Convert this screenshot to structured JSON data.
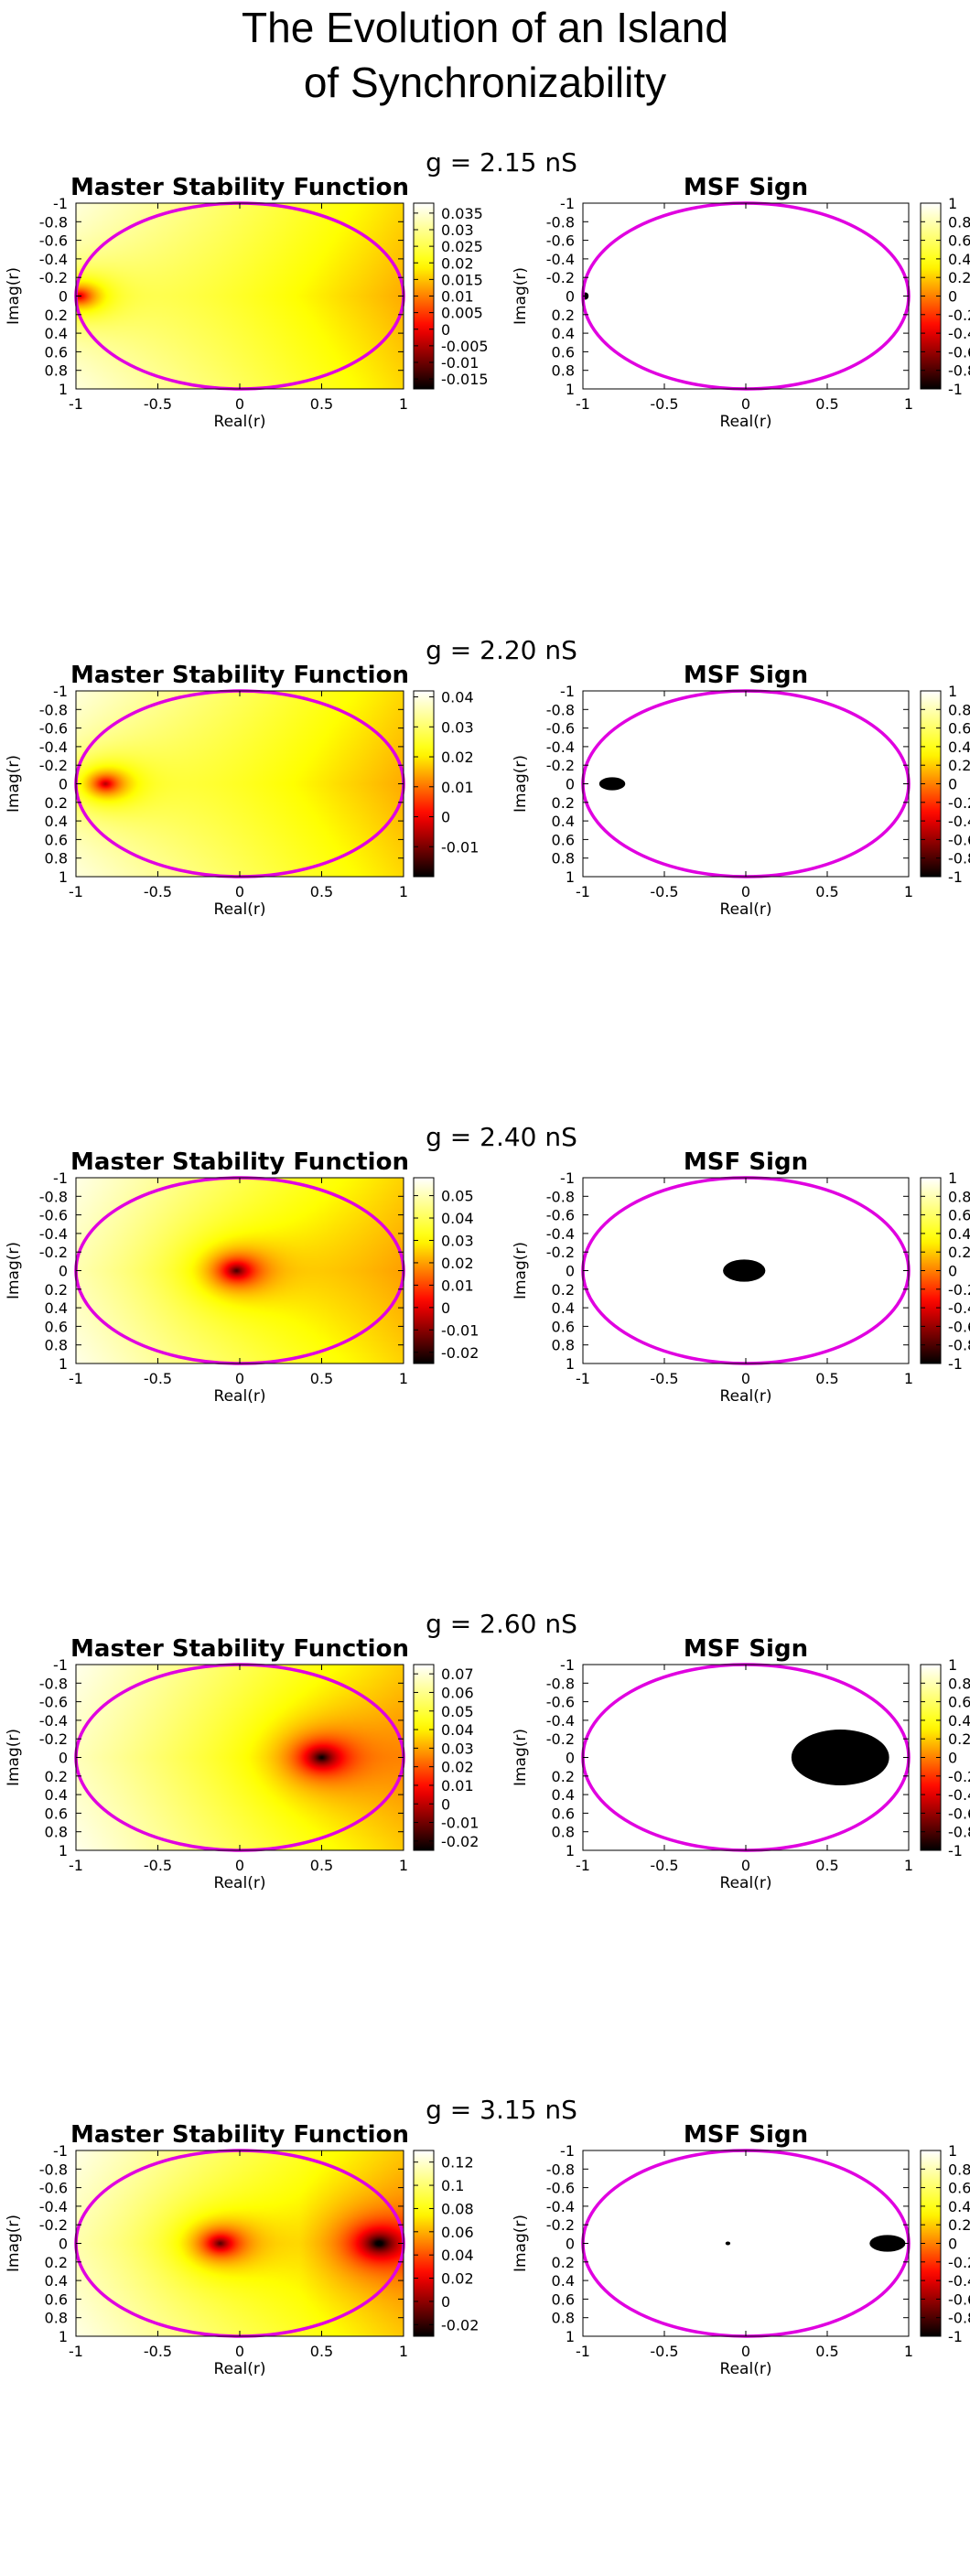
{
  "figure": {
    "title_line1": "The Evolution of an Island",
    "title_line2": "of Synchronizability"
  },
  "colors": {
    "circle": "#e000e0",
    "frame": "#000000"
  },
  "chart_data": [
    {
      "type": "heatmap",
      "g_label": "g = 2.15 nS",
      "panels": [
        {
          "title": "Master Stability Function",
          "xlabel": "Real(r)",
          "ylabel": "Imag(r)",
          "xlim": [
            -1,
            1
          ],
          "ylim": [
            -1,
            1
          ],
          "y_axis_inverted": true,
          "xticks": [
            "-1",
            "-0.5",
            "0",
            "0.5",
            "1"
          ],
          "yticks": [
            "-1",
            "-0.8",
            "-0.6",
            "-0.4",
            "-0.2",
            "0",
            "0.2",
            "0.4",
            "0.6",
            "0.8",
            "1"
          ],
          "colorbar_range": [
            -0.018,
            0.038
          ],
          "colorbar_ticks": [
            "0.035",
            "0.03",
            "0.025",
            "0.02",
            "0.015",
            "0.01",
            "0.005",
            "0",
            "-0.005",
            "-0.01",
            "-0.015"
          ],
          "colorbar_tick_values": [
            0.035,
            0.03,
            0.025,
            0.02,
            0.015,
            0.01,
            0.005,
            0,
            -0.005,
            -0.01,
            -0.015
          ],
          "minima": [
            {
              "re": -0.98,
              "im": 0.0
            }
          ],
          "unit_circle": true
        },
        {
          "title": "MSF Sign",
          "xlabel": "Real(r)",
          "ylabel": "Imag(r)",
          "xlim": [
            -1,
            1
          ],
          "ylim": [
            -1,
            1
          ],
          "y_axis_inverted": true,
          "xticks": [
            "-1",
            "-0.5",
            "0",
            "0.5",
            "1"
          ],
          "yticks": [
            "-1",
            "-0.8",
            "-0.6",
            "-0.4",
            "-0.2",
            "0",
            "0.2",
            "0.4",
            "0.6",
            "0.8",
            "1"
          ],
          "colorbar_range": [
            -1,
            1
          ],
          "colorbar_ticks": [
            "1",
            "0.8",
            "0.6",
            "0.4",
            "0.2",
            "0",
            "-0.2",
            "-0.4",
            "-0.6",
            "-0.8",
            "-1"
          ],
          "colorbar_tick_values": [
            1,
            0.8,
            0.6,
            0.4,
            0.2,
            0,
            -0.2,
            -0.4,
            -0.6,
            -0.8,
            -1
          ],
          "negative_regions": [
            {
              "re": -0.985,
              "im": 0.0,
              "r_re": 0.02,
              "r_im": 0.04
            }
          ],
          "unit_circle": true
        }
      ]
    },
    {
      "type": "heatmap",
      "g_label": "g = 2.20 nS",
      "panels": [
        {
          "title": "Master Stability Function",
          "xlabel": "Real(r)",
          "ylabel": "Imag(r)",
          "xlim": [
            -1,
            1
          ],
          "ylim": [
            -1,
            1
          ],
          "y_axis_inverted": true,
          "xticks": [
            "-1",
            "-0.5",
            "0",
            "0.5",
            "1"
          ],
          "yticks": [
            "-1",
            "-0.8",
            "-0.6",
            "-0.4",
            "-0.2",
            "0",
            "0.2",
            "0.4",
            "0.6",
            "0.8",
            "1"
          ],
          "colorbar_range": [
            -0.02,
            0.042
          ],
          "colorbar_ticks": [
            "0.04",
            "0.03",
            "0.02",
            "0.01",
            "0",
            "-0.01"
          ],
          "colorbar_tick_values": [
            0.04,
            0.03,
            0.02,
            0.01,
            0,
            -0.01
          ],
          "minima": [
            {
              "re": -0.82,
              "im": 0.0
            }
          ],
          "unit_circle": true
        },
        {
          "title": "MSF Sign",
          "xlabel": "Real(r)",
          "ylabel": "Imag(r)",
          "xlim": [
            -1,
            1
          ],
          "ylim": [
            -1,
            1
          ],
          "y_axis_inverted": true,
          "xticks": [
            "-1",
            "-0.5",
            "0",
            "0.5",
            "1"
          ],
          "yticks": [
            "-1",
            "-0.8",
            "-0.6",
            "-0.4",
            "-0.2",
            "0",
            "0.2",
            "0.4",
            "0.6",
            "0.8",
            "1"
          ],
          "colorbar_range": [
            -1,
            1
          ],
          "colorbar_ticks": [
            "1",
            "0.8",
            "0.6",
            "0.4",
            "0.2",
            "0",
            "-0.2",
            "-0.4",
            "-0.6",
            "-0.8",
            "-1"
          ],
          "colorbar_tick_values": [
            1,
            0.8,
            0.6,
            0.4,
            0.2,
            0,
            -0.2,
            -0.4,
            -0.6,
            -0.8,
            -1
          ],
          "negative_regions": [
            {
              "re": -0.82,
              "im": 0.0,
              "r_re": 0.08,
              "r_im": 0.07
            }
          ],
          "unit_circle": true
        }
      ]
    },
    {
      "type": "heatmap",
      "g_label": "g = 2.40 nS",
      "panels": [
        {
          "title": "Master Stability Function",
          "xlabel": "Real(r)",
          "ylabel": "Imag(r)",
          "xlim": [
            -1,
            1
          ],
          "ylim": [
            -1,
            1
          ],
          "y_axis_inverted": true,
          "xticks": [
            "-1",
            "-0.5",
            "0",
            "0.5",
            "1"
          ],
          "yticks": [
            "-1",
            "-0.8",
            "-0.6",
            "-0.4",
            "-0.2",
            "0",
            "0.2",
            "0.4",
            "0.6",
            "0.8",
            "1"
          ],
          "colorbar_range": [
            -0.025,
            0.058
          ],
          "colorbar_ticks": [
            "0.05",
            "0.04",
            "0.03",
            "0.02",
            "0.01",
            "0",
            "-0.01",
            "-0.02"
          ],
          "colorbar_tick_values": [
            0.05,
            0.04,
            0.03,
            0.02,
            0.01,
            0,
            -0.01,
            -0.02
          ],
          "minima": [
            {
              "re": -0.02,
              "im": 0.0
            }
          ],
          "unit_circle": true
        },
        {
          "title": "MSF Sign",
          "xlabel": "Real(r)",
          "ylabel": "Imag(r)",
          "xlim": [
            -1,
            1
          ],
          "ylim": [
            -1,
            1
          ],
          "y_axis_inverted": true,
          "xticks": [
            "-1",
            "-0.5",
            "0",
            "0.5",
            "1"
          ],
          "yticks": [
            "-1",
            "-0.8",
            "-0.6",
            "-0.4",
            "-0.2",
            "0",
            "0.2",
            "0.4",
            "0.6",
            "0.8",
            "1"
          ],
          "colorbar_range": [
            -1,
            1
          ],
          "colorbar_ticks": [
            "1",
            "0.8",
            "0.6",
            "0.4",
            "0.2",
            "0",
            "-0.2",
            "-0.4",
            "-0.6",
            "-0.8",
            "-1"
          ],
          "colorbar_tick_values": [
            1,
            0.8,
            0.6,
            0.4,
            0.2,
            0,
            -0.2,
            -0.4,
            -0.6,
            -0.8,
            -1
          ],
          "negative_regions": [
            {
              "re": -0.01,
              "im": 0.0,
              "r_re": 0.13,
              "r_im": 0.12
            }
          ],
          "unit_circle": true
        }
      ]
    },
    {
      "type": "heatmap",
      "g_label": "g = 2.60 nS",
      "panels": [
        {
          "title": "Master Stability Function",
          "xlabel": "Real(r)",
          "ylabel": "Imag(r)",
          "xlim": [
            -1,
            1
          ],
          "ylim": [
            -1,
            1
          ],
          "y_axis_inverted": true,
          "xticks": [
            "-1",
            "-0.5",
            "0",
            "0.5",
            "1"
          ],
          "yticks": [
            "-1",
            "-0.8",
            "-0.6",
            "-0.4",
            "-0.2",
            "0",
            "0.2",
            "0.4",
            "0.6",
            "0.8",
            "1"
          ],
          "colorbar_range": [
            -0.025,
            0.075
          ],
          "colorbar_ticks": [
            "0.07",
            "0.06",
            "0.05",
            "0.04",
            "0.03",
            "0.02",
            "0.01",
            "0",
            "-0.01",
            "-0.02"
          ],
          "colorbar_tick_values": [
            0.07,
            0.06,
            0.05,
            0.04,
            0.03,
            0.02,
            0.01,
            0,
            -0.01,
            -0.02
          ],
          "minima": [
            {
              "re": 0.5,
              "im": 0.0
            }
          ],
          "unit_circle": true
        },
        {
          "title": "MSF Sign",
          "xlabel": "Real(r)",
          "ylabel": "Imag(r)",
          "xlim": [
            -1,
            1
          ],
          "ylim": [
            -1,
            1
          ],
          "y_axis_inverted": true,
          "xticks": [
            "-1",
            "-0.5",
            "0",
            "0.5",
            "1"
          ],
          "yticks": [
            "-1",
            "-0.8",
            "-0.6",
            "-0.4",
            "-0.2",
            "0",
            "0.2",
            "0.4",
            "0.6",
            "0.8",
            "1"
          ],
          "colorbar_range": [
            -1,
            1
          ],
          "colorbar_ticks": [
            "1",
            "0.8",
            "0.6",
            "0.4",
            "0.2",
            "0",
            "-0.2",
            "-0.4",
            "-0.6",
            "-0.8",
            "-1"
          ],
          "colorbar_tick_values": [
            1,
            0.8,
            0.6,
            0.4,
            0.2,
            0,
            -0.2,
            -0.4,
            -0.6,
            -0.8,
            -1
          ],
          "negative_regions": [
            {
              "re": 0.58,
              "im": 0.0,
              "r_re": 0.3,
              "r_im": 0.3
            }
          ],
          "unit_circle": true
        }
      ]
    },
    {
      "type": "heatmap",
      "g_label": "g = 3.15 nS",
      "panels": [
        {
          "title": "Master Stability Function",
          "xlabel": "Real(r)",
          "ylabel": "Imag(r)",
          "xlim": [
            -1,
            1
          ],
          "ylim": [
            -1,
            1
          ],
          "y_axis_inverted": true,
          "xticks": [
            "-1",
            "-0.5",
            "0",
            "0.5",
            "1"
          ],
          "yticks": [
            "-1",
            "-0.8",
            "-0.6",
            "-0.4",
            "-0.2",
            "0",
            "0.2",
            "0.4",
            "0.6",
            "0.8",
            "1"
          ],
          "colorbar_range": [
            -0.03,
            0.13
          ],
          "colorbar_ticks": [
            "0.12",
            "0.1",
            "0.08",
            "0.06",
            "0.04",
            "0.02",
            "0",
            "-0.02"
          ],
          "colorbar_tick_values": [
            0.12,
            0.1,
            0.08,
            0.06,
            0.04,
            0.02,
            0,
            -0.02
          ],
          "minima": [
            {
              "re": -0.12,
              "im": 0.0
            },
            {
              "re": 0.85,
              "im": 0.0
            }
          ],
          "unit_circle": true
        },
        {
          "title": "MSF Sign",
          "xlabel": "Real(r)",
          "ylabel": "Imag(r)",
          "xlim": [
            -1,
            1
          ],
          "ylim": [
            -1,
            1
          ],
          "y_axis_inverted": true,
          "xticks": [
            "-1",
            "-0.5",
            "0",
            "0.5",
            "1"
          ],
          "yticks": [
            "-1",
            "-0.8",
            "-0.6",
            "-0.4",
            "-0.2",
            "0",
            "0.2",
            "0.4",
            "0.6",
            "0.8",
            "1"
          ],
          "colorbar_range": [
            -1,
            1
          ],
          "colorbar_ticks": [
            "1",
            "0.8",
            "0.6",
            "0.4",
            "0.2",
            "0",
            "-0.2",
            "-0.4",
            "-0.6",
            "-0.8",
            "-1"
          ],
          "colorbar_tick_values": [
            1,
            0.8,
            0.6,
            0.4,
            0.2,
            0,
            -0.2,
            -0.4,
            -0.6,
            -0.8,
            -1
          ],
          "negative_regions": [
            {
              "re": -0.11,
              "im": 0.0,
              "r_re": 0.015,
              "r_im": 0.015
            },
            {
              "re": 0.87,
              "im": 0.0,
              "r_re": 0.11,
              "r_im": 0.09
            }
          ],
          "unit_circle": true
        }
      ]
    }
  ]
}
